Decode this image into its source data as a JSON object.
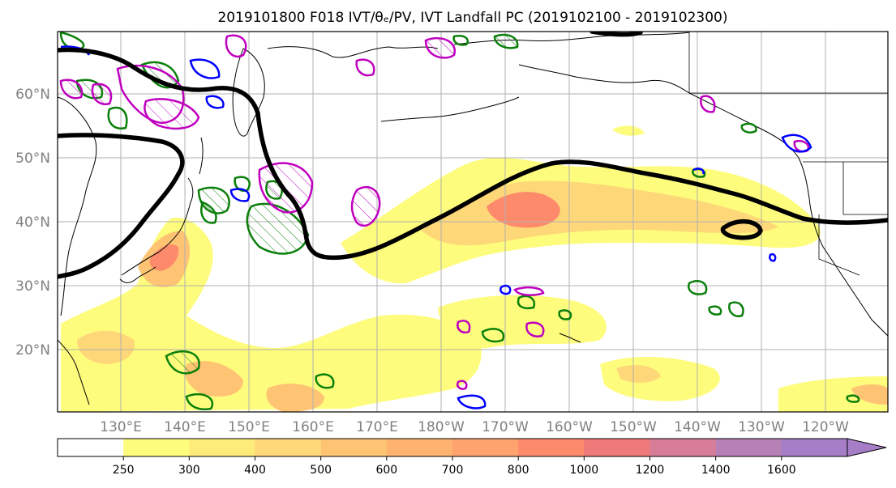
{
  "title": "2019101800 F018 IVT/θₑ/PV, IVT Landfall PC (2019102100 - 2019102300)",
  "lat_labels": [
    "60°N",
    "50°N",
    "40°N",
    "30°N",
    "20°N"
  ],
  "lon_labels": [
    "130°E",
    "140°E",
    "150°E",
    "160°E",
    "170°E",
    "180°W",
    "170°W",
    "160°W",
    "150°W",
    "140°W",
    "130°W",
    "120°W"
  ],
  "colorbar": {
    "ticks": [
      "250",
      "300",
      "400",
      "500",
      "600",
      "700",
      "800",
      "1000",
      "1200",
      "1400",
      "1600"
    ],
    "colors": [
      "#ffffff",
      "#fefc7c",
      "#feec7a",
      "#fed778",
      "#fec474",
      "#feb470",
      "#fea36e",
      "#fe8a6c",
      "#ee7a79",
      "#d87d99",
      "#b781b7",
      "#a67dc7"
    ]
  },
  "colors": {
    "contour_black": "#000000",
    "contour_green": "#0a7f0a",
    "contour_blue": "#0000ff",
    "contour_magenta": "#bf00bf",
    "grid": "#b0b0b0",
    "tick_label": "#808080"
  }
}
